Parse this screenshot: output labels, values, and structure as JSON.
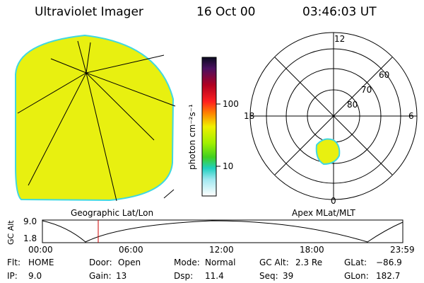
{
  "header": {
    "title": "Ultraviolet Imager",
    "date": "16 Oct 00",
    "time": "03:46:03 UT"
  },
  "colorbar": {
    "unit_label": "photon cm⁻²s⁻¹",
    "ticks": [
      "100",
      "10"
    ]
  },
  "left_panel": {
    "caption": "Geographic Lat/Lon",
    "fill_color": "#e8f010",
    "rim_color": "#40d8e0"
  },
  "right_panel": {
    "caption": "Apex MLat/MLT",
    "hour_labels": {
      "top": "12",
      "left": "18",
      "right": "6",
      "bottom": "0"
    },
    "lat_labels": [
      "60",
      "70",
      "80"
    ]
  },
  "altitude_strip": {
    "axis_label": "GC Alt",
    "y_ticks": [
      "9.0",
      "1.8"
    ],
    "x_ticks": [
      "00:00",
      "06:00",
      "12:00",
      "18:00",
      "23:59"
    ],
    "marker_color": "#cc0000"
  },
  "status": {
    "row1": {
      "flt_label": "Flt:",
      "flt_value": "HOME",
      "door_label": "Door:",
      "door_value": "Open",
      "mode_label": "Mode:",
      "mode_value": "Normal",
      "gcalt_label": "GC Alt:",
      "gcalt_value": "2.3 Re",
      "glat_label": "GLat:",
      "glat_value": "−86.9"
    },
    "row2": {
      "ip_label": "IP:",
      "ip_value": "9.0",
      "gain_label": "Gain:",
      "gain_value": "13",
      "dsp_label": "Dsp:",
      "dsp_value": "11.4",
      "seq_label": "Seq:",
      "seq_value": "39",
      "glon_label": "GLon:",
      "glon_value": "182.7"
    }
  }
}
